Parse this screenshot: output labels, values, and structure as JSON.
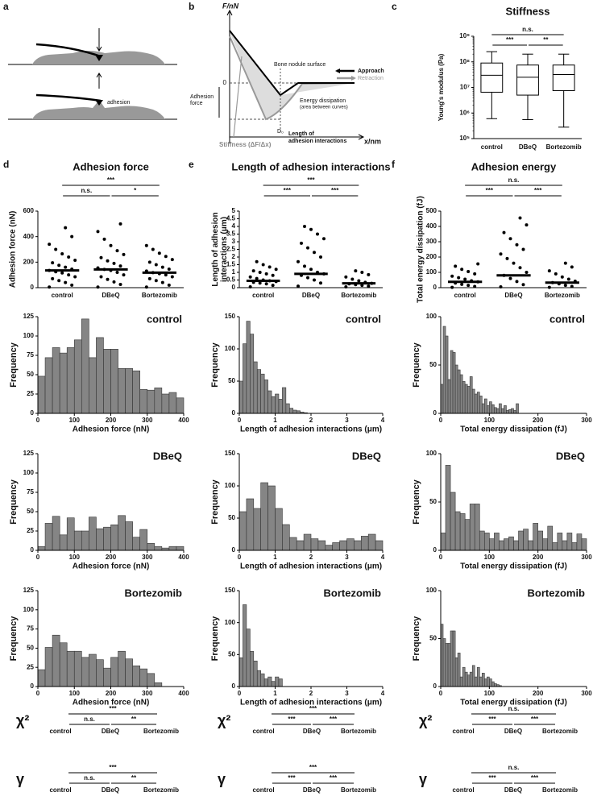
{
  "panel_labels": [
    "a",
    "b",
    "c",
    "d",
    "e",
    "f"
  ],
  "panel_a": {
    "label": "adhesion"
  },
  "panel_b": {
    "y_axis": "F/nN",
    "x_axis": "x/nm",
    "zero": "0",
    "surface": "Bone nodule surface",
    "approach": "Approach",
    "retraction": "Retraction",
    "adhesion_force": [
      "Adhesion",
      "force"
    ],
    "energy": [
      "Energy dissipation",
      "(area between curves)"
    ],
    "stiffness": "Stiffness (ΔF/Δx)",
    "d0": "D₀",
    "length": [
      "Length of",
      "adhesion interactions"
    ]
  },
  "chart_data": [
    {
      "type": "box",
      "title": "Stiffness",
      "ylabel": "Young's modulus (Pa)",
      "log_scale": true,
      "categories": [
        "control",
        "DBeQ",
        "Bortezomib"
      ],
      "boxes": [
        {
          "whisker_low": 600000,
          "q1": 6500000,
          "median": 30000000,
          "q3": 90000000,
          "whisker_high": 250000000
        },
        {
          "whisker_low": 550000,
          "q1": 5000000,
          "median": 25000000,
          "q3": 75000000,
          "whisker_high": 200000000
        },
        {
          "whisker_low": 280000,
          "q1": 7500000,
          "median": 32000000,
          "q3": 75000000,
          "whisker_high": 200000000
        }
      ],
      "ylim": [
        100000,
        1000000000
      ],
      "yticks": [
        {
          "value": 100000,
          "label": "10⁵"
        },
        {
          "value": 1000000,
          "label": "10⁶"
        },
        {
          "value": 10000000,
          "label": "10⁷"
        },
        {
          "value": 100000000,
          "label": "10⁸"
        },
        {
          "value": 1000000000,
          "label": "10⁹"
        }
      ],
      "significance": {
        "top": "n.s.",
        "left": "***",
        "right": "**"
      }
    },
    {
      "type": "strip",
      "title": "Adhesion force",
      "ylabel": [
        "Adhesion force (nN)"
      ],
      "categories": [
        "control",
        "DBeQ",
        "Bortezomib"
      ],
      "values": [
        [
          5,
          20,
          40,
          55,
          70,
          85,
          100,
          115,
          125,
          135,
          145,
          160,
          175,
          195,
          215,
          240,
          265,
          300,
          340,
          400,
          470
        ],
        [
          5,
          25,
          45,
          65,
          85,
          100,
          120,
          135,
          143,
          155,
          170,
          190,
          210,
          235,
          260,
          290,
          330,
          380,
          440,
          500
        ],
        [
          5,
          20,
          40,
          55,
          70,
          85,
          100,
          110,
          118,
          130,
          145,
          160,
          180,
          200,
          220,
          245,
          270,
          300,
          330
        ]
      ],
      "medians": [
        135,
        143,
        118
      ],
      "ylim": [
        0,
        600
      ],
      "yticks": [
        0,
        200,
        400,
        600
      ],
      "significance": {
        "top": "***",
        "left": "n.s.",
        "right": "*"
      }
    },
    {
      "type": "strip",
      "title": "Length of adhesion interactions",
      "ylabel": [
        "Length of adhesion",
        "interactions (μm)"
      ],
      "categories": [
        "control",
        "DBeQ",
        "Bortezomib"
      ],
      "values": [
        [
          0.05,
          0.15,
          0.25,
          0.3,
          0.35,
          0.4,
          0.45,
          0.5,
          0.6,
          0.7,
          0.8,
          0.9,
          1.0,
          1.1,
          1.2,
          1.35,
          1.5,
          1.7
        ],
        [
          0.1,
          0.3,
          0.5,
          0.65,
          0.8,
          0.9,
          1.0,
          1.2,
          1.4,
          1.7,
          2.0,
          2.3,
          2.6,
          2.9,
          3.2,
          3.5,
          3.8,
          4.0
        ],
        [
          0.05,
          0.1,
          0.15,
          0.2,
          0.25,
          0.28,
          0.35,
          0.45,
          0.55,
          0.7,
          0.85,
          1.0,
          1.1
        ]
      ],
      "medians": [
        0.45,
        0.9,
        0.28
      ],
      "ylim": [
        0,
        5
      ],
      "yticks": [
        0,
        0.5,
        1,
        1.5,
        2,
        2.5,
        3,
        3.5,
        4,
        4.5,
        5
      ],
      "significance": {
        "top": "***",
        "left": "***",
        "right": "***"
      }
    },
    {
      "type": "strip",
      "title": "Adhesion energy",
      "ylabel": [
        "Total energy dissipation (fJ)"
      ],
      "categories": [
        "control",
        "DBeQ",
        "Bortezomib"
      ],
      "values": [
        [
          2,
          8,
          15,
          22,
          30,
          38,
          45,
          55,
          65,
          75,
          90,
          105,
          120,
          140,
          155
        ],
        [
          5,
          20,
          40,
          60,
          80,
          100,
          130,
          160,
          190,
          220,
          250,
          280,
          320,
          360,
          410,
          455
        ],
        [
          2,
          8,
          15,
          25,
          33,
          42,
          55,
          70,
          90,
          110,
          135,
          160
        ]
      ],
      "medians": [
        38,
        80,
        33
      ],
      "ylim": [
        0,
        500
      ],
      "yticks": [
        0,
        100,
        200,
        300,
        400,
        500
      ],
      "significance": {
        "top": "n.s.",
        "left": "***",
        "right": "***"
      }
    },
    {
      "type": "histogram",
      "title": "control",
      "xlabel": "Adhesion force (nN)",
      "ylabel": "Frequency",
      "bins": [
        0,
        20,
        40,
        60,
        80,
        100,
        120,
        140,
        160,
        180,
        200,
        220,
        240,
        260,
        280,
        300,
        320,
        340,
        360,
        380,
        400
      ],
      "counts": [
        48,
        72,
        85,
        78,
        85,
        95,
        122,
        72,
        98,
        83,
        83,
        58,
        58,
        55,
        31,
        30,
        33,
        25,
        27,
        20
      ],
      "xlim": [
        0,
        400
      ],
      "xticks": [
        0,
        100,
        200,
        300,
        400
      ],
      "ylim": [
        0,
        125
      ],
      "yticks": [
        0,
        25,
        50,
        75,
        100,
        125
      ],
      "color": "#858585"
    },
    {
      "type": "histogram",
      "title": "control",
      "xlabel": "Length of adhesion interactions (μm)",
      "ylabel": "Frequency",
      "bins": [
        0,
        0.1,
        0.2,
        0.3,
        0.4,
        0.5,
        0.6,
        0.7,
        0.8,
        0.9,
        1.0,
        1.1,
        1.2,
        1.3,
        1.4,
        1.5,
        1.6,
        1.7,
        1.8,
        1.9
      ],
      "counts": [
        50,
        108,
        143,
        123,
        80,
        68,
        61,
        52,
        35,
        26,
        30,
        22,
        40,
        15,
        8,
        5,
        4,
        2,
        1
      ],
      "xlim": [
        0,
        4
      ],
      "xticks": [
        0,
        1,
        2,
        3,
        4
      ],
      "ylim": [
        0,
        150
      ],
      "yticks": [
        0,
        50,
        100,
        150
      ],
      "color": "#858585"
    },
    {
      "type": "histogram",
      "title": "control",
      "xlabel": "Total energy dissipation (fJ)",
      "ylabel": "Frequency",
      "bins": [
        0,
        5,
        10,
        15,
        20,
        25,
        30,
        35,
        40,
        45,
        50,
        55,
        60,
        65,
        70,
        75,
        80,
        85,
        90,
        95,
        100,
        105,
        110,
        115,
        120,
        125,
        130,
        135,
        140,
        145,
        150,
        155,
        160
      ],
      "counts": [
        30,
        90,
        80,
        35,
        65,
        63,
        50,
        45,
        40,
        33,
        30,
        28,
        38,
        25,
        20,
        22,
        18,
        10,
        15,
        8,
        12,
        9,
        6,
        5,
        10,
        5,
        8,
        3,
        4,
        5,
        3,
        10
      ],
      "xlim": [
        0,
        300
      ],
      "xticks": [
        0,
        100,
        200,
        300
      ],
      "ylim": [
        0,
        100
      ],
      "yticks": [
        0,
        50,
        100
      ],
      "color": "#858585"
    },
    {
      "type": "histogram",
      "title": "DBeQ",
      "xlabel": "Adhesion force (nN)",
      "ylabel": "Frequency",
      "bins": [
        0,
        20,
        40,
        60,
        80,
        100,
        120,
        140,
        160,
        180,
        200,
        220,
        240,
        260,
        280,
        300,
        320,
        340,
        360,
        380,
        400
      ],
      "counts": [
        5,
        35,
        44,
        20,
        42,
        25,
        25,
        43,
        28,
        30,
        33,
        45,
        37,
        17,
        27,
        9,
        5,
        3,
        5,
        5
      ],
      "xlim": [
        0,
        400
      ],
      "xticks": [
        0,
        100,
        200,
        300,
        400
      ],
      "ylim": [
        0,
        125
      ],
      "yticks": [
        0,
        25,
        50,
        75,
        100,
        125
      ],
      "color": "#858585"
    },
    {
      "type": "histogram",
      "title": "DBeQ",
      "xlabel": "Length of adhesion interactions (μm)",
      "ylabel": "Frequency",
      "bins": [
        0,
        0.2,
        0.4,
        0.6,
        0.8,
        1.0,
        1.2,
        1.4,
        1.6,
        1.8,
        2.0,
        2.2,
        2.4,
        2.6,
        2.8,
        3.0,
        3.2,
        3.4,
        3.6,
        3.8,
        4.0
      ],
      "counts": [
        60,
        80,
        65,
        105,
        100,
        65,
        40,
        20,
        15,
        25,
        18,
        15,
        8,
        12,
        15,
        18,
        15,
        22,
        25,
        15
      ],
      "xlim": [
        0,
        4
      ],
      "xticks": [
        0,
        1,
        2,
        3,
        4
      ],
      "ylim": [
        0,
        150
      ],
      "yticks": [
        0,
        50,
        100,
        150
      ],
      "color": "#858585"
    },
    {
      "type": "histogram",
      "title": "DBeQ",
      "xlabel": "Total energy dissipation (fJ)",
      "ylabel": "Frequency",
      "bins": [
        0,
        10,
        20,
        30,
        40,
        50,
        60,
        70,
        80,
        90,
        100,
        110,
        120,
        130,
        140,
        150,
        160,
        170,
        180,
        190,
        200,
        210,
        220,
        230,
        240,
        250,
        260,
        270,
        280,
        290,
        300
      ],
      "counts": [
        18,
        88,
        60,
        40,
        38,
        32,
        48,
        48,
        20,
        18,
        12,
        18,
        10,
        12,
        14,
        10,
        20,
        22,
        10,
        28,
        20,
        12,
        25,
        8,
        18,
        10,
        18,
        8,
        17,
        12
      ],
      "xlim": [
        0,
        300
      ],
      "xticks": [
        0,
        100,
        200,
        300
      ],
      "ylim": [
        0,
        100
      ],
      "yticks": [
        0,
        50,
        100
      ],
      "color": "#858585"
    },
    {
      "type": "histogram",
      "title": "Bortezomib",
      "xlabel": "Adhesion force (nN)",
      "ylabel": "Frequency",
      "bins": [
        0,
        20,
        40,
        60,
        80,
        100,
        120,
        140,
        160,
        180,
        200,
        220,
        240,
        260,
        280,
        300,
        320,
        340
      ],
      "counts": [
        22,
        51,
        67,
        57,
        46,
        46,
        38,
        42,
        35,
        24,
        38,
        46,
        36,
        27,
        23,
        17,
        5
      ],
      "xlim": [
        0,
        400
      ],
      "xticks": [
        0,
        100,
        200,
        300,
        400
      ],
      "ylim": [
        0,
        125
      ],
      "yticks": [
        0,
        25,
        50,
        75,
        100,
        125
      ],
      "color": "#858585"
    },
    {
      "type": "histogram",
      "title": "Bortezomib",
      "xlabel": "Length of adhesion interactions (μm)",
      "ylabel": "Frequency",
      "bins": [
        0,
        0.1,
        0.2,
        0.3,
        0.4,
        0.5,
        0.6,
        0.7,
        0.8,
        0.9,
        1.0,
        1.1,
        1.2
      ],
      "counts": [
        45,
        128,
        90,
        55,
        40,
        25,
        20,
        12,
        15,
        8,
        15,
        12
      ],
      "xlim": [
        0,
        4
      ],
      "xticks": [
        0,
        1,
        2,
        3,
        4
      ],
      "ylim": [
        0,
        150
      ],
      "yticks": [
        0,
        50,
        100,
        150
      ],
      "color": "#858585"
    },
    {
      "type": "histogram",
      "title": "Bortezomib",
      "xlabel": "Total energy dissipation (fJ)",
      "ylabel": "Frequency",
      "bins": [
        0,
        5,
        10,
        15,
        20,
        25,
        30,
        35,
        40,
        45,
        50,
        55,
        60,
        65,
        70,
        75,
        80,
        85,
        90,
        95,
        100,
        105,
        110,
        115,
        120,
        125
      ],
      "counts": [
        65,
        50,
        45,
        45,
        58,
        58,
        30,
        35,
        10,
        20,
        15,
        12,
        15,
        22,
        10,
        20,
        10,
        14,
        8,
        10,
        8,
        5,
        3,
        2,
        1
      ],
      "xlim": [
        0,
        300
      ],
      "xticks": [
        0,
        100,
        200,
        300
      ],
      "ylim": [
        0,
        100
      ],
      "yticks": [
        0,
        50,
        100
      ],
      "color": "#858585"
    }
  ],
  "tests": [
    {
      "symbol": "χ²",
      "significance": {
        "top": "***",
        "left": "n.s.",
        "right": "**"
      }
    },
    {
      "symbol": "χ²",
      "significance": {
        "top": "***",
        "left": "***",
        "right": "***"
      }
    },
    {
      "symbol": "χ²",
      "significance": {
        "top": "n.s.",
        "left": "***",
        "right": "***"
      }
    },
    {
      "symbol": "γ",
      "significance": {
        "top": "***",
        "left": "n.s.",
        "right": "**"
      }
    },
    {
      "symbol": "γ",
      "significance": {
        "top": "***",
        "left": "***",
        "right": "***"
      }
    },
    {
      "symbol": "γ",
      "significance": {
        "top": "n.s.",
        "left": "***",
        "right": "***"
      }
    }
  ]
}
